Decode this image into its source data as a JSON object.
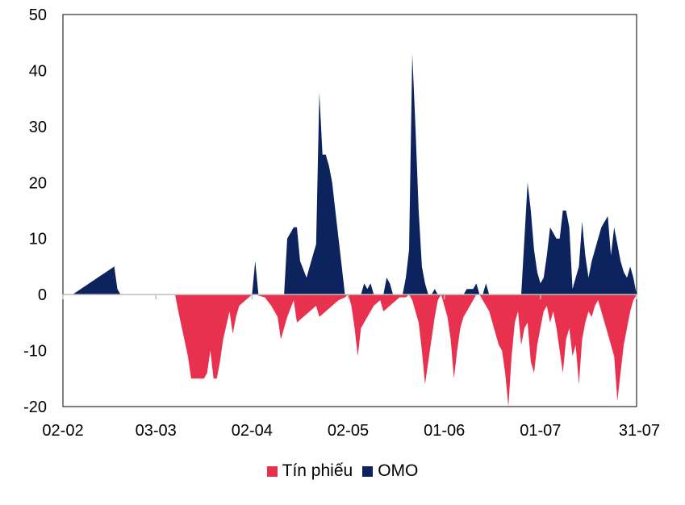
{
  "chart_data": {
    "type": "area",
    "title": "",
    "xlabel": "",
    "ylabel": "",
    "ylim": [
      -20,
      50
    ],
    "yticks": [
      -20,
      -10,
      0,
      10,
      20,
      30,
      40,
      50
    ],
    "x_start": "02-02",
    "x_end": "31-07",
    "xticks": [
      {
        "label": "02-02",
        "day": 0
      },
      {
        "label": "03-03",
        "day": 29
      },
      {
        "label": "02-04",
        "day": 59
      },
      {
        "label": "02-05",
        "day": 89
      },
      {
        "label": "01-06",
        "day": 119
      },
      {
        "label": "01-07",
        "day": 149
      },
      {
        "label": "31-07",
        "day": 179
      }
    ],
    "legend_position": "bottom",
    "series": [
      {
        "name": "Tín phiếu",
        "color": "#E8304F",
        "points": [
          [
            0,
            0
          ],
          [
            35,
            0
          ],
          [
            36,
            -3
          ],
          [
            39,
            -11
          ],
          [
            40,
            -15
          ],
          [
            43,
            -15
          ],
          [
            44,
            -15
          ],
          [
            45,
            -14
          ],
          [
            46,
            -10
          ],
          [
            47,
            -15
          ],
          [
            48,
            -15
          ],
          [
            49,
            -12
          ],
          [
            50,
            -8
          ],
          [
            52,
            -3
          ],
          [
            53,
            -7
          ],
          [
            54,
            -4
          ],
          [
            55,
            -2
          ],
          [
            57,
            -1
          ],
          [
            58,
            -0.5
          ],
          [
            59,
            0
          ],
          [
            60,
            0
          ],
          [
            63,
            -0.5
          ],
          [
            65,
            -2
          ],
          [
            67,
            -4
          ],
          [
            68,
            -8
          ],
          [
            70,
            -4
          ],
          [
            72,
            -1
          ],
          [
            73,
            -5
          ],
          [
            75,
            -4
          ],
          [
            77,
            -3
          ],
          [
            79,
            -2
          ],
          [
            80,
            -4
          ],
          [
            82,
            -3
          ],
          [
            84,
            -2
          ],
          [
            86,
            -1
          ],
          [
            88,
            -0.5
          ],
          [
            89,
            0
          ],
          [
            90,
            -2
          ],
          [
            91,
            -6
          ],
          [
            92,
            -11
          ],
          [
            93,
            -6
          ],
          [
            95,
            -4
          ],
          [
            97,
            -2
          ],
          [
            99,
            -1
          ],
          [
            100,
            -3
          ],
          [
            102,
            -2
          ],
          [
            104,
            -1
          ],
          [
            105,
            -0.5
          ],
          [
            107,
            -0.5
          ],
          [
            108,
            0
          ],
          [
            109,
            -1
          ],
          [
            110,
            -3
          ],
          [
            111,
            -5
          ],
          [
            112,
            -10
          ],
          [
            113,
            -16
          ],
          [
            114,
            -12
          ],
          [
            115,
            -8
          ],
          [
            116,
            -4
          ],
          [
            117,
            -1
          ],
          [
            118,
            0
          ],
          [
            119,
            -2
          ],
          [
            120,
            -4
          ],
          [
            121,
            -8
          ],
          [
            122,
            -15
          ],
          [
            123,
            -10
          ],
          [
            124,
            -6
          ],
          [
            125,
            -4
          ],
          [
            126,
            -3
          ],
          [
            127,
            -2
          ],
          [
            128,
            -1
          ],
          [
            129,
            0
          ],
          [
            130,
            0
          ],
          [
            131,
            -1
          ],
          [
            132,
            -2
          ],
          [
            133,
            -3
          ],
          [
            134,
            -5
          ],
          [
            135,
            -7
          ],
          [
            136,
            -9
          ],
          [
            137,
            -10
          ],
          [
            138,
            -14
          ],
          [
            139,
            -20
          ],
          [
            140,
            -11
          ],
          [
            141,
            -5
          ],
          [
            142,
            -3
          ],
          [
            143,
            -9
          ],
          [
            144,
            -6
          ],
          [
            145,
            -5
          ],
          [
            146,
            -12
          ],
          [
            147,
            -14
          ],
          [
            148,
            -9
          ],
          [
            149,
            -6
          ],
          [
            150,
            -3
          ],
          [
            151,
            -2
          ],
          [
            152,
            -5
          ],
          [
            153,
            -3
          ],
          [
            154,
            -6
          ],
          [
            155,
            -10
          ],
          [
            156,
            -14
          ],
          [
            157,
            -8
          ],
          [
            158,
            -6
          ],
          [
            159,
            -11
          ],
          [
            160,
            -9
          ],
          [
            161,
            -16
          ],
          [
            162,
            -8
          ],
          [
            163,
            -5
          ],
          [
            164,
            -3
          ],
          [
            165,
            -4
          ],
          [
            166,
            -2
          ],
          [
            167,
            -1
          ],
          [
            168,
            -3
          ],
          [
            169,
            -5
          ],
          [
            170,
            -7
          ],
          [
            171,
            -9
          ],
          [
            172,
            -11
          ],
          [
            173,
            -19
          ],
          [
            174,
            -14
          ],
          [
            175,
            -9
          ],
          [
            176,
            -6
          ],
          [
            177,
            -3
          ],
          [
            178,
            -1
          ],
          [
            179,
            0
          ]
        ]
      },
      {
        "name": "OMO",
        "color": "#0C235E",
        "points": [
          [
            0,
            0
          ],
          [
            3,
            0
          ],
          [
            16,
            5
          ],
          [
            17,
            1
          ],
          [
            18,
            0
          ],
          [
            59,
            0
          ],
          [
            60,
            6
          ],
          [
            61,
            0
          ],
          [
            69,
            0
          ],
          [
            70,
            10
          ],
          [
            72,
            12
          ],
          [
            73,
            12
          ],
          [
            74,
            6
          ],
          [
            76,
            3
          ],
          [
            78,
            7
          ],
          [
            79,
            9
          ],
          [
            80,
            36
          ],
          [
            81,
            25
          ],
          [
            82,
            25
          ],
          [
            83,
            23
          ],
          [
            84,
            20
          ],
          [
            85,
            15
          ],
          [
            86,
            10
          ],
          [
            87,
            5
          ],
          [
            88,
            0
          ],
          [
            93,
            0
          ],
          [
            94,
            2
          ],
          [
            95,
            1
          ],
          [
            96,
            2
          ],
          [
            97,
            0
          ],
          [
            100,
            0
          ],
          [
            101,
            3
          ],
          [
            102,
            2
          ],
          [
            103,
            0
          ],
          [
            106,
            0
          ],
          [
            107,
            3
          ],
          [
            108,
            8
          ],
          [
            109,
            43
          ],
          [
            110,
            30
          ],
          [
            111,
            15
          ],
          [
            112,
            5
          ],
          [
            113,
            2
          ],
          [
            114,
            0
          ],
          [
            115,
            0
          ],
          [
            116,
            1
          ],
          [
            117,
            0
          ],
          [
            125,
            0
          ],
          [
            126,
            1
          ],
          [
            127,
            1
          ],
          [
            128,
            1
          ],
          [
            129,
            2
          ],
          [
            130,
            0
          ],
          [
            131,
            0
          ],
          [
            132,
            2
          ],
          [
            133,
            0
          ],
          [
            143,
            0
          ],
          [
            144,
            10
          ],
          [
            145,
            20
          ],
          [
            146,
            15
          ],
          [
            147,
            8
          ],
          [
            148,
            4
          ],
          [
            149,
            2
          ],
          [
            150,
            3
          ],
          [
            151,
            7
          ],
          [
            152,
            12
          ],
          [
            153,
            11
          ],
          [
            154,
            10
          ],
          [
            155,
            10
          ],
          [
            156,
            15
          ],
          [
            157,
            15
          ],
          [
            158,
            12
          ],
          [
            159,
            1
          ],
          [
            160,
            3
          ],
          [
            161,
            5
          ],
          [
            162,
            13
          ],
          [
            163,
            7
          ],
          [
            164,
            3
          ],
          [
            165,
            6
          ],
          [
            166,
            8
          ],
          [
            167,
            10
          ],
          [
            168,
            12
          ],
          [
            169,
            13
          ],
          [
            170,
            14
          ],
          [
            171,
            7
          ],
          [
            172,
            12
          ],
          [
            173,
            9
          ],
          [
            174,
            6
          ],
          [
            175,
            4
          ],
          [
            176,
            3
          ],
          [
            177,
            5
          ],
          [
            178,
            3
          ],
          [
            179,
            0
          ]
        ]
      }
    ]
  }
}
